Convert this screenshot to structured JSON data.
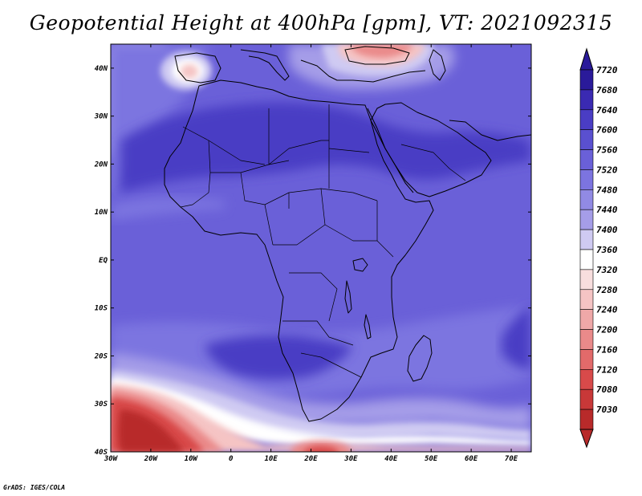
{
  "title": "Geopotential Height at 400hPa [gpm], VT: 2021092315",
  "footer": "GrADS: IGES/COLA",
  "map": {
    "lon_range": [
      -30,
      75
    ],
    "lat_range": [
      -40,
      45
    ],
    "lon_ticks": [
      {
        "value": -30,
        "label": "30W"
      },
      {
        "value": -20,
        "label": "20W"
      },
      {
        "value": -10,
        "label": "10W"
      },
      {
        "value": 0,
        "label": "0"
      },
      {
        "value": 10,
        "label": "10E"
      },
      {
        "value": 20,
        "label": "20E"
      },
      {
        "value": 30,
        "label": "30E"
      },
      {
        "value": 40,
        "label": "40E"
      },
      {
        "value": 50,
        "label": "50E"
      },
      {
        "value": 60,
        "label": "60E"
      },
      {
        "value": 70,
        "label": "70E"
      }
    ],
    "lat_ticks": [
      {
        "value": 40,
        "label": "40N"
      },
      {
        "value": 30,
        "label": "30N"
      },
      {
        "value": 20,
        "label": "20N"
      },
      {
        "value": 10,
        "label": "10N"
      },
      {
        "value": 0,
        "label": "EQ"
      },
      {
        "value": -10,
        "label": "10S"
      },
      {
        "value": -20,
        "label": "20S"
      },
      {
        "value": -30,
        "label": "30S"
      },
      {
        "value": -40,
        "label": "40S"
      }
    ],
    "field_colors": {
      "background": "#6a60d8",
      "high": "#4a3dc4",
      "mid": "#7c74e0",
      "light": "#a59de8",
      "pale": "#cfcaf2",
      "white": "#ffffff",
      "pink": "#f5c4c4",
      "red_light": "#ea8a8a",
      "red": "#d84a4a",
      "red_dark": "#b82a2a",
      "coast": "#000000"
    }
  },
  "colorbar": {
    "levels": [
      {
        "label": "7720",
        "color": "#2a1a9a"
      },
      {
        "label": "7680",
        "color": "#3a2ab2"
      },
      {
        "label": "7640",
        "color": "#4a3dc4"
      },
      {
        "label": "7600",
        "color": "#5a50d0"
      },
      {
        "label": "7560",
        "color": "#6a60d8"
      },
      {
        "label": "7520",
        "color": "#7c74e0"
      },
      {
        "label": "7480",
        "color": "#918ae4"
      },
      {
        "label": "7440",
        "color": "#a59de8"
      },
      {
        "label": "7400",
        "color": "#cfcaf2"
      },
      {
        "label": "7360",
        "color": "#ffffff"
      },
      {
        "label": "7320",
        "color": "#f8dede"
      },
      {
        "label": "7280",
        "color": "#f5c4c4"
      },
      {
        "label": "7240",
        "color": "#efa8a8"
      },
      {
        "label": "7200",
        "color": "#ea8a8a"
      },
      {
        "label": "7160",
        "color": "#e26a6a"
      },
      {
        "label": "7120",
        "color": "#d84a4a"
      },
      {
        "label": "7080",
        "color": "#c83838"
      },
      {
        "label": "7030",
        "color": "#b82a2a"
      }
    ],
    "top_triangle_color": "#2a1a9a",
    "bottom_triangle_color": "#b82a2a"
  }
}
